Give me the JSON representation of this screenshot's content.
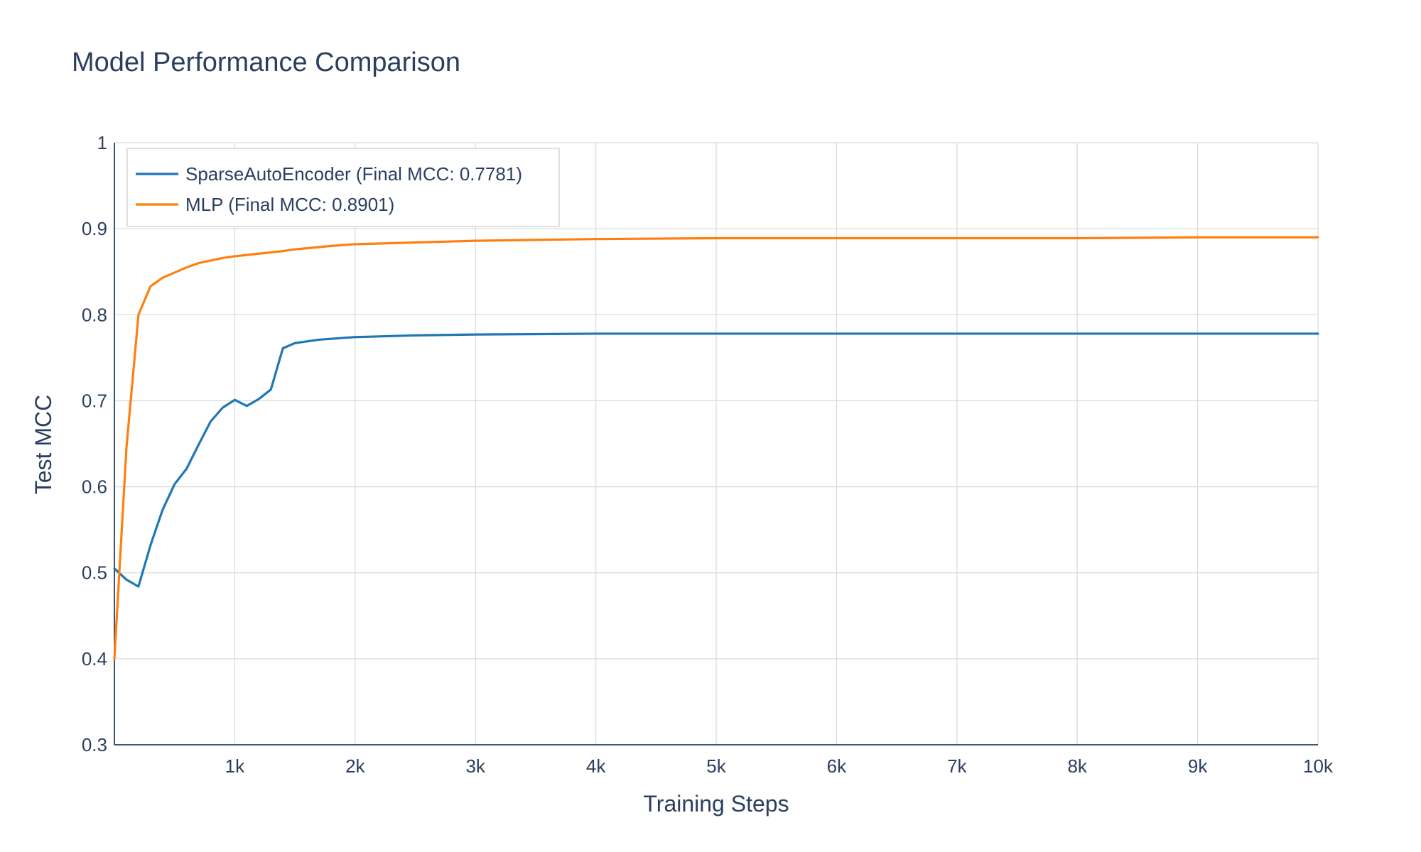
{
  "chart_data": {
    "type": "line",
    "title": "Model Performance Comparison",
    "xlabel": "Training Steps",
    "ylabel": "Test MCC",
    "xlim": [
      0,
      10000
    ],
    "ylim": [
      0.3,
      1.0
    ],
    "x_ticks": [
      {
        "value": 1000,
        "label": "1k"
      },
      {
        "value": 2000,
        "label": "2k"
      },
      {
        "value": 3000,
        "label": "3k"
      },
      {
        "value": 4000,
        "label": "4k"
      },
      {
        "value": 5000,
        "label": "5k"
      },
      {
        "value": 6000,
        "label": "6k"
      },
      {
        "value": 7000,
        "label": "7k"
      },
      {
        "value": 8000,
        "label": "8k"
      },
      {
        "value": 9000,
        "label": "9k"
      },
      {
        "value": 10000,
        "label": "10k"
      }
    ],
    "y_ticks": [
      {
        "value": 0.3,
        "label": "0.3"
      },
      {
        "value": 0.4,
        "label": "0.4"
      },
      {
        "value": 0.5,
        "label": "0.5"
      },
      {
        "value": 0.6,
        "label": "0.6"
      },
      {
        "value": 0.7,
        "label": "0.7"
      },
      {
        "value": 0.8,
        "label": "0.8"
      },
      {
        "value": 0.9,
        "label": "0.9"
      },
      {
        "value": 1.0,
        "label": "1"
      }
    ],
    "grid": true,
    "legend": "top-left",
    "series": [
      {
        "name": "SparseAutoEncoder (Final MCC: 0.7781)",
        "color": "#1f77b4",
        "x": [
          0,
          100,
          200,
          300,
          400,
          500,
          600,
          700,
          800,
          900,
          1000,
          1100,
          1200,
          1300,
          1400,
          1500,
          1600,
          1700,
          1800,
          2000,
          2500,
          3000,
          4000,
          5000,
          6000,
          7000,
          8000,
          9000,
          10000
        ],
        "y": [
          0.505,
          0.492,
          0.484,
          0.532,
          0.573,
          0.603,
          0.621,
          0.649,
          0.676,
          0.692,
          0.701,
          0.694,
          0.702,
          0.713,
          0.761,
          0.767,
          0.769,
          0.771,
          0.772,
          0.774,
          0.776,
          0.777,
          0.778,
          0.778,
          0.778,
          0.778,
          0.778,
          0.778,
          0.778
        ]
      },
      {
        "name": "MLP (Final MCC: 0.8901)",
        "color": "#ff7f0e",
        "x": [
          0,
          100,
          200,
          300,
          400,
          500,
          600,
          700,
          800,
          900,
          1000,
          1200,
          1400,
          1500,
          1800,
          2000,
          2500,
          3000,
          4000,
          5000,
          6000,
          7000,
          8000,
          9000,
          10000
        ],
        "y": [
          0.4,
          0.645,
          0.8,
          0.833,
          0.843,
          0.849,
          0.855,
          0.86,
          0.863,
          0.866,
          0.868,
          0.871,
          0.874,
          0.876,
          0.88,
          0.882,
          0.884,
          0.886,
          0.888,
          0.889,
          0.889,
          0.889,
          0.889,
          0.89,
          0.89
        ]
      }
    ]
  }
}
